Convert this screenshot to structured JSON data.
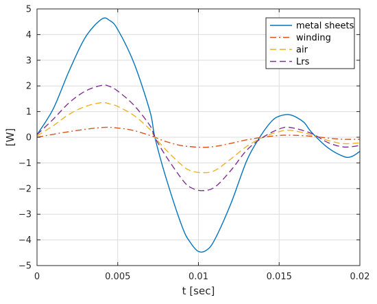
{
  "chart_data": {
    "type": "line",
    "xlabel": "t [sec]",
    "ylabel": "[W]",
    "xlim": [
      0,
      0.02
    ],
    "ylim": [
      -5,
      5
    ],
    "grid": true,
    "legend_position": "top-right",
    "x_ticks": [
      "0",
      "0.005",
      "0.01",
      "0.015",
      "0.02"
    ],
    "y_ticks": [
      "5",
      "4",
      "3",
      "2",
      "1",
      "0",
      "-1",
      "-2",
      "-3",
      "-4",
      "-5"
    ],
    "series": [
      {
        "name": "metal sheets",
        "color": "#0072BD",
        "dash": "solid",
        "x": [
          0,
          0.001,
          0.002,
          0.003,
          0.004,
          0.0045,
          0.005,
          0.006,
          0.007,
          0.0073,
          0.008,
          0.009,
          0.0095,
          0.01,
          0.0105,
          0.011,
          0.012,
          0.013,
          0.0138,
          0.0145,
          0.015,
          0.0157,
          0.0165,
          0.017,
          0.018,
          0.019,
          0.0195,
          0.02
        ],
        "y": [
          0.1,
          1.1,
          2.6,
          3.9,
          4.6,
          4.55,
          4.2,
          2.9,
          1.0,
          0.0,
          -1.6,
          -3.5,
          -4.1,
          -4.45,
          -4.4,
          -4.0,
          -2.6,
          -0.9,
          0.0,
          0.6,
          0.82,
          0.87,
          0.6,
          0.2,
          -0.4,
          -0.75,
          -0.75,
          -0.55
        ]
      },
      {
        "name": "winding",
        "color": "#D95319",
        "dash": "dashdot",
        "x": [
          0,
          0.002,
          0.004,
          0.005,
          0.006,
          0.007,
          0.0073,
          0.008,
          0.009,
          0.0102,
          0.011,
          0.012,
          0.013,
          0.014,
          0.015,
          0.0157,
          0.017,
          0.018,
          0.019,
          0.02
        ],
        "y": [
          0.0,
          0.22,
          0.38,
          0.36,
          0.26,
          0.07,
          0.0,
          -0.17,
          -0.33,
          -0.39,
          -0.36,
          -0.24,
          -0.1,
          0.0,
          0.07,
          0.08,
          0.04,
          -0.03,
          -0.08,
          -0.08
        ]
      },
      {
        "name": "air",
        "color": "#EDB120",
        "dash": "dashed",
        "x": [
          0,
          0.001,
          0.002,
          0.003,
          0.004,
          0.0045,
          0.005,
          0.006,
          0.007,
          0.0073,
          0.008,
          0.009,
          0.0095,
          0.0102,
          0.011,
          0.012,
          0.013,
          0.014,
          0.015,
          0.0157,
          0.017,
          0.018,
          0.019,
          0.02
        ],
        "y": [
          0.05,
          0.45,
          0.9,
          1.2,
          1.35,
          1.3,
          1.2,
          0.85,
          0.3,
          0.0,
          -0.5,
          -1.1,
          -1.3,
          -1.38,
          -1.3,
          -0.85,
          -0.35,
          0.0,
          0.22,
          0.27,
          0.1,
          -0.12,
          -0.25,
          -0.22
        ]
      },
      {
        "name": "Lrs",
        "color": "#7E2F8E",
        "dash": "dashed",
        "x": [
          0,
          0.001,
          0.002,
          0.003,
          0.004,
          0.0045,
          0.005,
          0.006,
          0.007,
          0.0073,
          0.008,
          0.009,
          0.0095,
          0.0102,
          0.011,
          0.012,
          0.013,
          0.014,
          0.015,
          0.0157,
          0.017,
          0.018,
          0.019,
          0.02
        ],
        "y": [
          0.1,
          0.7,
          1.35,
          1.8,
          2.02,
          1.98,
          1.8,
          1.25,
          0.45,
          0.0,
          -0.75,
          -1.65,
          -1.95,
          -2.08,
          -1.95,
          -1.3,
          -0.5,
          0.0,
          0.32,
          0.38,
          0.15,
          -0.2,
          -0.38,
          -0.32
        ]
      }
    ]
  }
}
